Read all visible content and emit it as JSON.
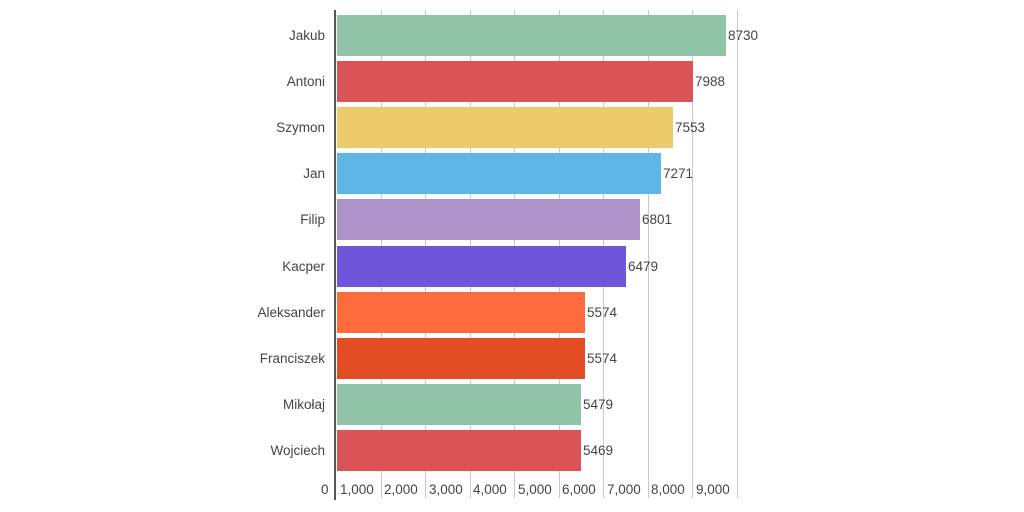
{
  "chart_data": {
    "type": "bar",
    "orientation": "horizontal",
    "title": "",
    "xlabel": "",
    "ylabel": "",
    "categories": [
      "Jakub",
      "Antoni",
      "Szymon",
      "Jan",
      "Filip",
      "Kacper",
      "Aleksander",
      "Franciszek",
      "Mikołaj",
      "Wojciech"
    ],
    "values": [
      8730,
      7988,
      7553,
      7271,
      6801,
      6479,
      5574,
      5574,
      5479,
      5469
    ],
    "value_labels": [
      "8730",
      "7988",
      "7553",
      "7271",
      "6801",
      "6479",
      "5574",
      "5574",
      "5479",
      "5469"
    ],
    "colors": [
      "#8fc4a9",
      "#dc5357",
      "#eecb6a",
      "#5fb5e5",
      "#ad92c9",
      "#6e55d9",
      "#fd6a3b",
      "#e34d24",
      "#8fc4a9",
      "#dc5357"
    ],
    "xlim": [
      0,
      10000
    ],
    "x_ticks": [
      0,
      1000,
      2000,
      3000,
      4000,
      5000,
      6000,
      7000,
      8000,
      9000
    ],
    "x_tick_labels": [
      "0",
      "1,000",
      "2,000",
      "3,000",
      "4,000",
      "5,000",
      "6,000",
      "7,000",
      "8,000",
      "9,000"
    ],
    "grid": true,
    "legend": null
  }
}
